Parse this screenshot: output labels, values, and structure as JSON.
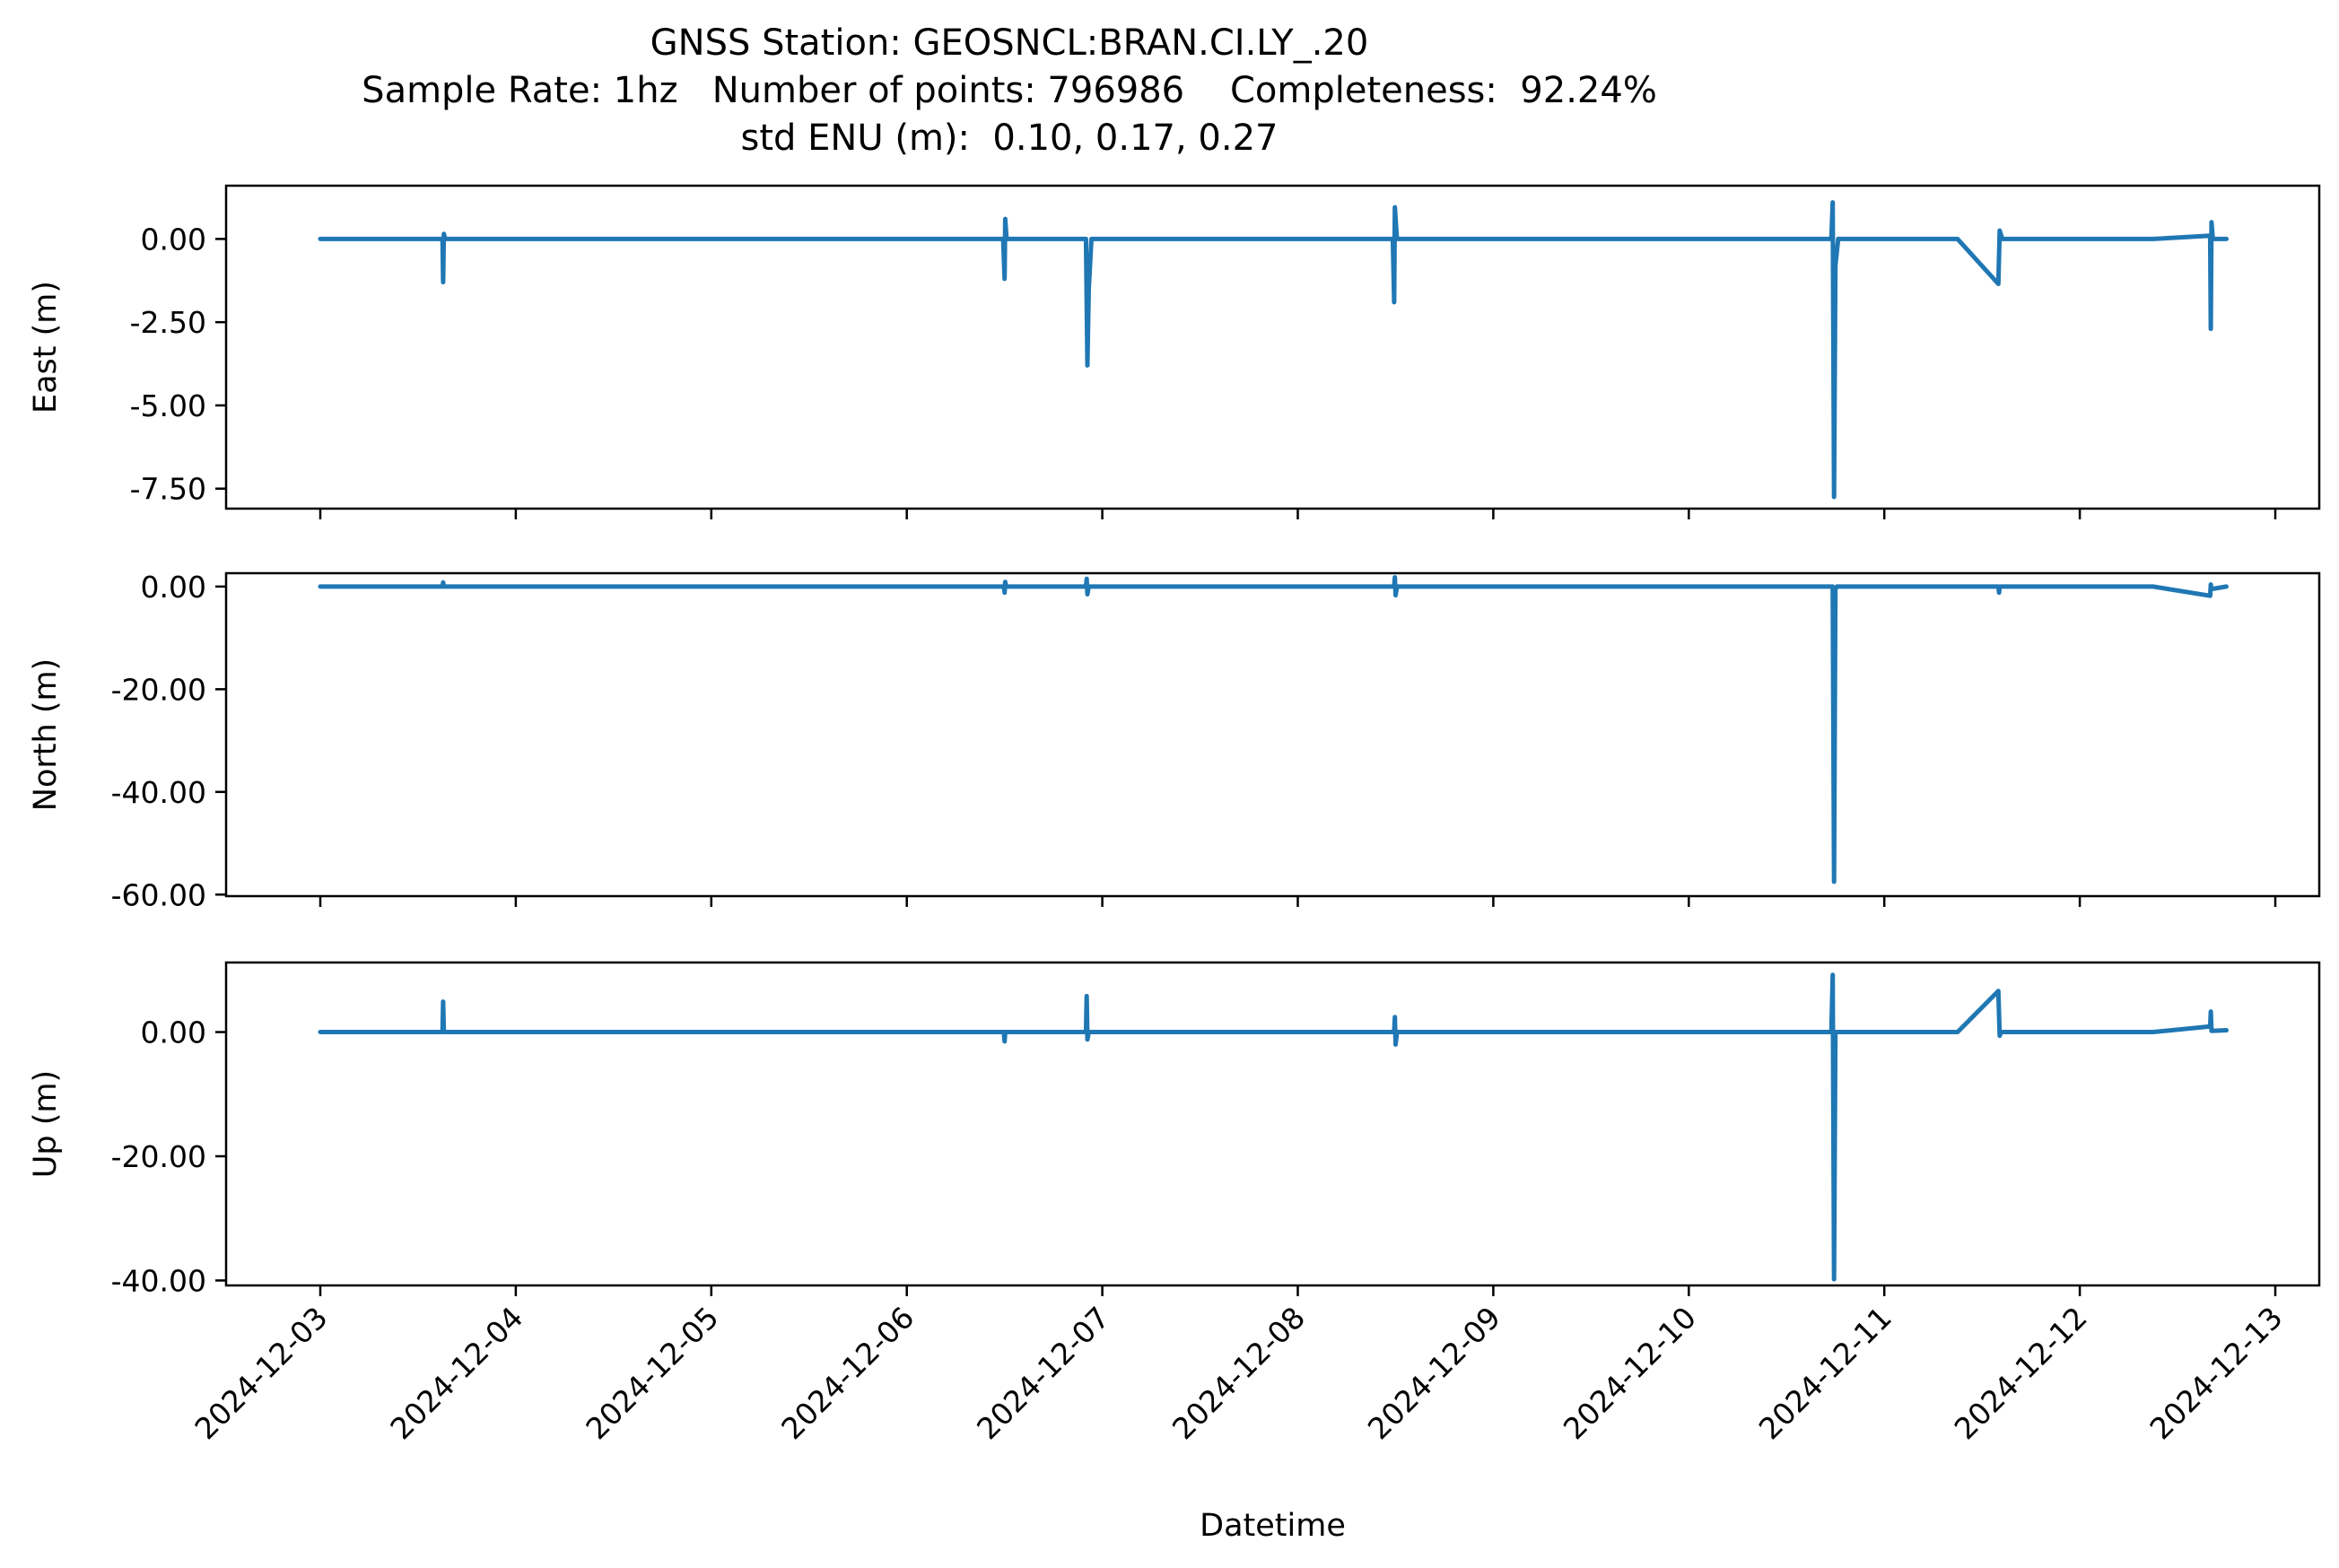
{
  "chart_data": {
    "type": "line",
    "title": "GNSS Station: GEOSNCL:BRAN.CI.LY_.20",
    "subtitle_lines": [
      "Sample Rate: 1hz   Number of points: 796986    Completeness:  92.24%",
      "std ENU (m):  0.10, 0.17, 0.27"
    ],
    "xlabel": "Datetime",
    "x_ticks": [
      "2024-12-03",
      "2024-12-04",
      "2024-12-05",
      "2024-12-06",
      "2024-12-07",
      "2024-12-08",
      "2024-12-09",
      "2024-12-10",
      "2024-12-11",
      "2024-12-12",
      "2024-12-13"
    ],
    "line_color": "#1f77b4",
    "grid": false,
    "legend": "none",
    "subplots": [
      {
        "ylabel": "East (m)",
        "ylim": [
          -8.1,
          1.6
        ],
        "y_ticks": [
          0,
          -2.5,
          -5,
          -7.5
        ],
        "y_tick_labels": [
          "0.00",
          "-2.50",
          "-5.00",
          "-7.50"
        ],
        "points": [
          [
            "2024-12-03T00:00",
            0
          ],
          [
            "2024-12-03T15:00",
            0
          ],
          [
            "2024-12-03T15:05",
            -1.3
          ],
          [
            "2024-12-03T15:10",
            0.15
          ],
          [
            "2024-12-03T15:20",
            0
          ],
          [
            "2024-12-06T11:50",
            0
          ],
          [
            "2024-12-06T12:00",
            -1.2
          ],
          [
            "2024-12-06T12:05",
            0.6
          ],
          [
            "2024-12-06T12:15",
            0
          ],
          [
            "2024-12-06T22:00",
            0
          ],
          [
            "2024-12-06T22:10",
            -3.8
          ],
          [
            "2024-12-06T22:20",
            -1.5
          ],
          [
            "2024-12-06T22:40",
            0
          ],
          [
            "2024-12-08T11:40",
            0
          ],
          [
            "2024-12-08T11:50",
            -1.9
          ],
          [
            "2024-12-08T11:55",
            0.95
          ],
          [
            "2024-12-08T12:10",
            0
          ],
          [
            "2024-12-10T17:30",
            0
          ],
          [
            "2024-12-10T17:40",
            1.1
          ],
          [
            "2024-12-10T17:50",
            -7.75
          ],
          [
            "2024-12-10T18:00",
            -0.8
          ],
          [
            "2024-12-10T18:20",
            0
          ],
          [
            "2024-12-11T09:00",
            0
          ],
          [
            "2024-12-11T14:00",
            -1.35
          ],
          [
            "2024-12-11T14:10",
            0.25
          ],
          [
            "2024-12-11T14:30",
            0
          ],
          [
            "2024-12-12T09:00",
            0
          ],
          [
            "2024-12-12T16:00",
            0.1
          ],
          [
            "2024-12-12T16:05",
            -2.7
          ],
          [
            "2024-12-12T16:10",
            0.5
          ],
          [
            "2024-12-12T16:20",
            0
          ],
          [
            "2024-12-12T18:00",
            0
          ]
        ]
      },
      {
        "ylabel": "North (m)",
        "ylim": [
          -60.3,
          2.6
        ],
        "y_ticks": [
          0,
          -20,
          -40,
          -60
        ],
        "y_tick_labels": [
          "0.00",
          "-20.00",
          "-40.00",
          "-60.00"
        ],
        "points": [
          [
            "2024-12-03T00:00",
            0
          ],
          [
            "2024-12-03T15:00",
            0
          ],
          [
            "2024-12-03T15:05",
            0.8
          ],
          [
            "2024-12-03T15:10",
            0
          ],
          [
            "2024-12-06T11:55",
            0
          ],
          [
            "2024-12-06T12:00",
            -1.2
          ],
          [
            "2024-12-06T12:05",
            0.9
          ],
          [
            "2024-12-06T12:10",
            0
          ],
          [
            "2024-12-06T22:00",
            0
          ],
          [
            "2024-12-06T22:05",
            1.5
          ],
          [
            "2024-12-06T22:10",
            -1.5
          ],
          [
            "2024-12-06T22:20",
            0
          ],
          [
            "2024-12-08T11:50",
            0
          ],
          [
            "2024-12-08T11:55",
            1.8
          ],
          [
            "2024-12-08T12:00",
            -1.7
          ],
          [
            "2024-12-08T12:10",
            0
          ],
          [
            "2024-12-10T17:40",
            0
          ],
          [
            "2024-12-10T17:50",
            -57.5
          ],
          [
            "2024-12-10T18:00",
            -0.5
          ],
          [
            "2024-12-10T18:10",
            0
          ],
          [
            "2024-12-11T14:00",
            0
          ],
          [
            "2024-12-11T14:05",
            -1.2
          ],
          [
            "2024-12-11T14:10",
            0
          ],
          [
            "2024-12-12T09:00",
            0
          ],
          [
            "2024-12-12T16:00",
            -1.8
          ],
          [
            "2024-12-12T16:05",
            0.4
          ],
          [
            "2024-12-12T16:10",
            -0.5
          ],
          [
            "2024-12-12T18:00",
            0
          ]
        ]
      },
      {
        "ylabel": "Up (m)",
        "ylim": [
          -40.8,
          11.2
        ],
        "y_ticks": [
          0,
          -20,
          -40
        ],
        "y_tick_labels": [
          "0.00",
          "-20.00",
          "-40.00"
        ],
        "points": [
          [
            "2024-12-03T00:00",
            0
          ],
          [
            "2024-12-03T15:00",
            0
          ],
          [
            "2024-12-03T15:05",
            4.9
          ],
          [
            "2024-12-03T15:10",
            0
          ],
          [
            "2024-12-06T11:55",
            0
          ],
          [
            "2024-12-06T12:00",
            -1.5
          ],
          [
            "2024-12-06T12:05",
            0
          ],
          [
            "2024-12-06T22:00",
            0
          ],
          [
            "2024-12-06T22:05",
            5.8
          ],
          [
            "2024-12-06T22:10",
            -1.2
          ],
          [
            "2024-12-06T22:20",
            0
          ],
          [
            "2024-12-08T11:50",
            0
          ],
          [
            "2024-12-08T11:55",
            2.4
          ],
          [
            "2024-12-08T12:00",
            -2
          ],
          [
            "2024-12-08T12:10",
            0
          ],
          [
            "2024-12-10T17:30",
            0
          ],
          [
            "2024-12-10T17:40",
            9.2
          ],
          [
            "2024-12-10T17:50",
            -39.8
          ],
          [
            "2024-12-10T18:00",
            0
          ],
          [
            "2024-12-11T09:00",
            0
          ],
          [
            "2024-12-11T14:00",
            6.6
          ],
          [
            "2024-12-11T14:10",
            -0.6
          ],
          [
            "2024-12-11T14:20",
            0
          ],
          [
            "2024-12-12T09:00",
            0
          ],
          [
            "2024-12-12T16:00",
            0.9
          ],
          [
            "2024-12-12T16:05",
            3.3
          ],
          [
            "2024-12-12T16:10",
            0.2
          ],
          [
            "2024-12-12T18:00",
            0.3
          ]
        ]
      }
    ]
  }
}
